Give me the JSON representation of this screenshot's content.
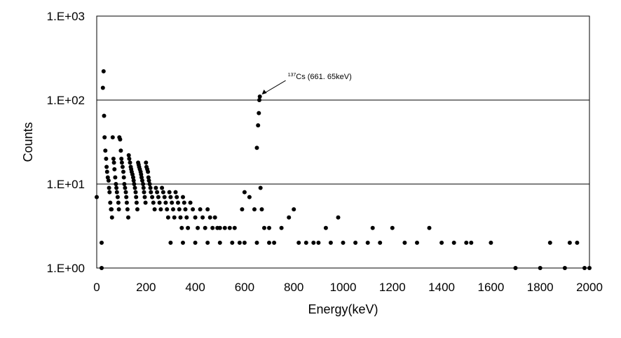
{
  "chart_data": {
    "type": "scatter",
    "title": "",
    "xlabel": "Energy(keV)",
    "ylabel": "Counts",
    "xlim": [
      0,
      2000
    ],
    "ylim": [
      1,
      1000
    ],
    "y_scale": "log",
    "x_ticks": [
      "0",
      "200",
      "400",
      "600",
      "800",
      "1000",
      "1200",
      "1400",
      "1600",
      "1800",
      "2000"
    ],
    "y_ticks": [
      {
        "value": 1,
        "label": "1.E+00"
      },
      {
        "value": 10,
        "label": "1.E+01"
      },
      {
        "value": 100,
        "label": "1.E+02"
      },
      {
        "value": 1000,
        "label": "1.E+03"
      }
    ],
    "grid": "horizontal major lines",
    "marker_color": "#000000",
    "annotation": {
      "isotope_mass": "137",
      "text": "Cs (661. 65keV)",
      "x": 661.65,
      "y": 110
    },
    "series": [
      {
        "points": [
          [
            0,
            7
          ],
          [
            20,
            2
          ],
          [
            20,
            1
          ],
          [
            25,
            140
          ],
          [
            28,
            220
          ],
          [
            30,
            65
          ],
          [
            32,
            36
          ],
          [
            35,
            25
          ],
          [
            38,
            20
          ],
          [
            40,
            16
          ],
          [
            42,
            14
          ],
          [
            45,
            12
          ],
          [
            48,
            11
          ],
          [
            50,
            9
          ],
          [
            52,
            8
          ],
          [
            55,
            6
          ],
          [
            58,
            5
          ],
          [
            60,
            5
          ],
          [
            62,
            4
          ],
          [
            65,
            36
          ],
          [
            68,
            20
          ],
          [
            70,
            18
          ],
          [
            72,
            15
          ],
          [
            75,
            12
          ],
          [
            78,
            10
          ],
          [
            80,
            9
          ],
          [
            82,
            8
          ],
          [
            85,
            7
          ],
          [
            88,
            6
          ],
          [
            90,
            5
          ],
          [
            92,
            36
          ],
          [
            95,
            34
          ],
          [
            98,
            25
          ],
          [
            100,
            20
          ],
          [
            102,
            18
          ],
          [
            105,
            16
          ],
          [
            108,
            14
          ],
          [
            110,
            12
          ],
          [
            112,
            10
          ],
          [
            115,
            9
          ],
          [
            118,
            8
          ],
          [
            120,
            7
          ],
          [
            122,
            6
          ],
          [
            125,
            5
          ],
          [
            128,
            4
          ],
          [
            130,
            22
          ],
          [
            132,
            20
          ],
          [
            135,
            18
          ],
          [
            138,
            16
          ],
          [
            140,
            15
          ],
          [
            142,
            14
          ],
          [
            145,
            13
          ],
          [
            148,
            12
          ],
          [
            150,
            11
          ],
          [
            152,
            10
          ],
          [
            155,
            9
          ],
          [
            158,
            8
          ],
          [
            160,
            7
          ],
          [
            162,
            6
          ],
          [
            165,
            5
          ],
          [
            168,
            18
          ],
          [
            170,
            17
          ],
          [
            172,
            16
          ],
          [
            175,
            15
          ],
          [
            178,
            14
          ],
          [
            180,
            13
          ],
          [
            182,
            12
          ],
          [
            185,
            11
          ],
          [
            188,
            10
          ],
          [
            190,
            9
          ],
          [
            192,
            8
          ],
          [
            195,
            7
          ],
          [
            198,
            6
          ],
          [
            200,
            18
          ],
          [
            202,
            16
          ],
          [
            205,
            15
          ],
          [
            208,
            14
          ],
          [
            210,
            12
          ],
          [
            212,
            11
          ],
          [
            215,
            10
          ],
          [
            218,
            9
          ],
          [
            220,
            8
          ],
          [
            225,
            7
          ],
          [
            230,
            6
          ],
          [
            235,
            5
          ],
          [
            240,
            9
          ],
          [
            245,
            8
          ],
          [
            250,
            7
          ],
          [
            255,
            6
          ],
          [
            260,
            5
          ],
          [
            265,
            9
          ],
          [
            270,
            8
          ],
          [
            275,
            7
          ],
          [
            280,
            6
          ],
          [
            285,
            5
          ],
          [
            290,
            4
          ],
          [
            295,
            8
          ],
          [
            300,
            7
          ],
          [
            305,
            6
          ],
          [
            310,
            5
          ],
          [
            315,
            4
          ],
          [
            320,
            8
          ],
          [
            325,
            7
          ],
          [
            330,
            6
          ],
          [
            335,
            5
          ],
          [
            340,
            4
          ],
          [
            345,
            3
          ],
          [
            350,
            7
          ],
          [
            355,
            6
          ],
          [
            360,
            5
          ],
          [
            365,
            4
          ],
          [
            370,
            3
          ],
          [
            380,
            6
          ],
          [
            390,
            5
          ],
          [
            400,
            4
          ],
          [
            410,
            3
          ],
          [
            420,
            5
          ],
          [
            430,
            4
          ],
          [
            440,
            3
          ],
          [
            450,
            5
          ],
          [
            460,
            4
          ],
          [
            470,
            3
          ],
          [
            480,
            4
          ],
          [
            490,
            3
          ],
          [
            500,
            3
          ],
          [
            520,
            3
          ],
          [
            540,
            3
          ],
          [
            560,
            3
          ],
          [
            580,
            2
          ],
          [
            590,
            5
          ],
          [
            600,
            8
          ],
          [
            620,
            7
          ],
          [
            640,
            5
          ],
          [
            650,
            27
          ],
          [
            655,
            50
          ],
          [
            658,
            70
          ],
          [
            660,
            100
          ],
          [
            662,
            110
          ],
          [
            665,
            9
          ],
          [
            670,
            5
          ],
          [
            680,
            3
          ],
          [
            700,
            3
          ],
          [
            720,
            2
          ],
          [
            750,
            3
          ],
          [
            780,
            4
          ],
          [
            800,
            5
          ],
          [
            820,
            2
          ],
          [
            850,
            2
          ],
          [
            880,
            2
          ],
          [
            900,
            2
          ],
          [
            930,
            3
          ],
          [
            950,
            2
          ],
          [
            980,
            4
          ],
          [
            1000,
            2
          ],
          [
            1050,
            2
          ],
          [
            1100,
            2
          ],
          [
            1120,
            3
          ],
          [
            1150,
            2
          ],
          [
            1200,
            3
          ],
          [
            1250,
            2
          ],
          [
            1300,
            2
          ],
          [
            1350,
            3
          ],
          [
            1400,
            2
          ],
          [
            1450,
            2
          ],
          [
            1500,
            2
          ],
          [
            1520,
            2
          ],
          [
            1600,
            2
          ],
          [
            1700,
            1
          ],
          [
            1800,
            1
          ],
          [
            1840,
            2
          ],
          [
            1900,
            1
          ],
          [
            1920,
            2
          ],
          [
            1950,
            2
          ],
          [
            1980,
            1
          ],
          [
            2000,
            1
          ],
          [
            300,
            2
          ],
          [
            350,
            2
          ],
          [
            400,
            2
          ],
          [
            450,
            2
          ],
          [
            500,
            2
          ],
          [
            550,
            2
          ],
          [
            600,
            2
          ],
          [
            650,
            2
          ],
          [
            700,
            2
          ]
        ]
      }
    ]
  }
}
